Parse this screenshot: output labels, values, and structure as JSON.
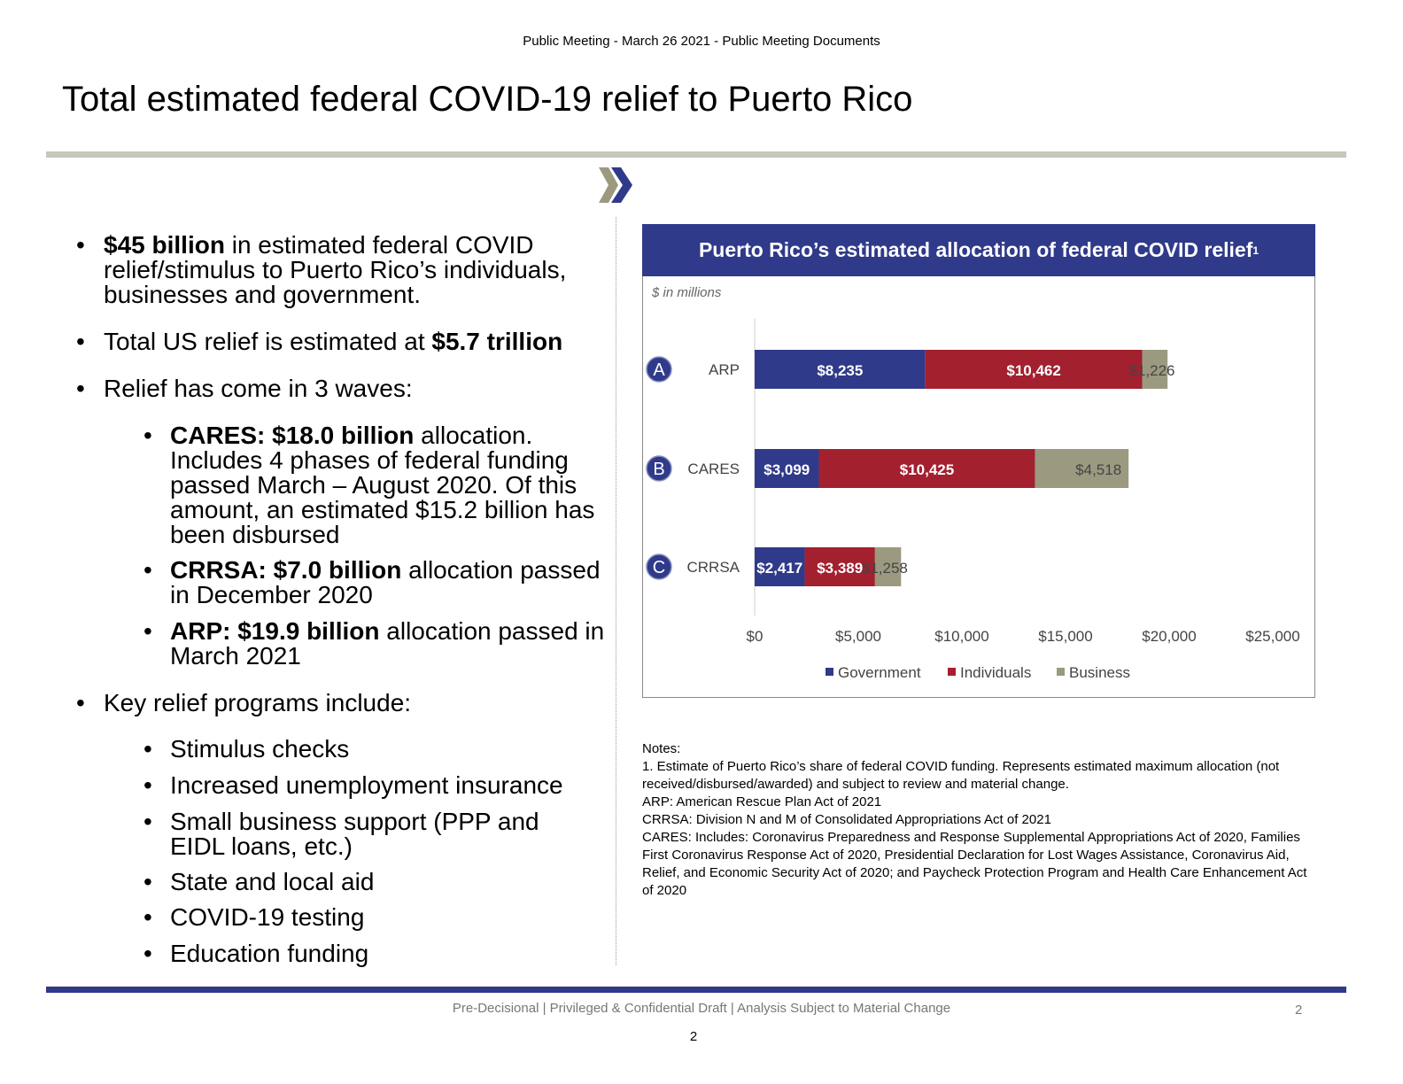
{
  "header": {
    "text": "Public Meeting - March 26 2021 - Public Meeting Documents"
  },
  "title": "Total estimated federal COVID-19 relief to Puerto Rico",
  "bullets": {
    "b1": {
      "bold": "$45 billion",
      "rest": " in estimated federal COVID relief/stimulus to Puerto Rico’s individuals, businesses and government."
    },
    "b2": {
      "pre": "Total US relief is estimated at ",
      "bold": "$5.7 trillion"
    },
    "b3": {
      "text": "Relief has come in 3 waves:"
    },
    "waves": [
      {
        "bold": "CARES: $18.0 billion",
        "rest": " allocation. Includes 4 phases of federal funding passed March – August 2020. Of this amount, an estimated $15.2 billion has been disbursed"
      },
      {
        "bold": "CRRSA: $7.0 billion",
        "rest": " allocation passed in December 2020"
      },
      {
        "bold": "ARP: $19.9 billion",
        "rest": " allocation passed in March 2021"
      }
    ],
    "b4": {
      "text": "Key relief programs include:"
    },
    "programs": [
      "Stimulus checks",
      "Increased unemployment insurance",
      "Small business support (PPP and EIDL loans, etc.)",
      "State and local aid",
      "COVID-19 testing",
      "Education funding"
    ],
    "bullet_char": "•"
  },
  "chart_data": {
    "type": "bar",
    "orientation": "horizontal",
    "stacked": true,
    "title": "Puerto Rico’s estimated allocation of federal COVID relief",
    "title_footnote": "1",
    "subtitle": "$ in millions",
    "categories": [
      "ARP",
      "CARES",
      "CRRSA"
    ],
    "category_badges": [
      "A",
      "B",
      "C"
    ],
    "series": [
      {
        "name": "Government",
        "values": [
          8235,
          3099,
          2417
        ],
        "labels": [
          "$8,235",
          "$3,099",
          "$2,417"
        ],
        "color": "#303a8a"
      },
      {
        "name": "Individuals",
        "values": [
          10462,
          10425,
          3389
        ],
        "labels": [
          "$10,462",
          "$10,425",
          "$3,389"
        ],
        "color": "#a3202f"
      },
      {
        "name": "Business",
        "values": [
          1226,
          4518,
          1258
        ],
        "labels": [
          "$1,226",
          "$4,518",
          "$1,258"
        ],
        "color": "#9b9a80"
      }
    ],
    "xlim": [
      0,
      25000
    ],
    "xticks": [
      0,
      5000,
      10000,
      15000,
      20000,
      25000
    ],
    "xtick_labels": [
      "$0",
      "$5,000",
      "$10,000",
      "$15,000",
      "$20,000",
      "$25,000"
    ],
    "grid": false,
    "legend": "bottom"
  },
  "notes": {
    "heading": "Notes:",
    "lines": [
      "1. Estimate of Puerto Rico’s share of federal COVID funding. Represents estimated maximum allocation (not received/disbursed/awarded) and subject to review and material change.",
      "ARP: American Rescue Plan Act of 2021",
      "CRRSA: Division N and M of Consolidated Appropriations Act of 2021",
      "CARES: Includes: Coronavirus Preparedness and Response Supplemental Appropriations Act of 2020, Families First Coronavirus Response Act of 2020, Presidential Declaration for Lost Wages Assistance, Coronavirus Aid, Relief, and Economic Security Act of 2020; and Paycheck Protection Program and Health Care Enhancement Act of 2020"
    ]
  },
  "footer": {
    "text": "Pre-Decisional | Privileged & Confidential Draft | Analysis Subject to Material Change",
    "slide_number": "2",
    "page_number": "2"
  },
  "colors": {
    "navy": "#303a8a",
    "red": "#a3202f",
    "taupe": "#9b9a80",
    "rule_gray": "#c5c8bb"
  }
}
